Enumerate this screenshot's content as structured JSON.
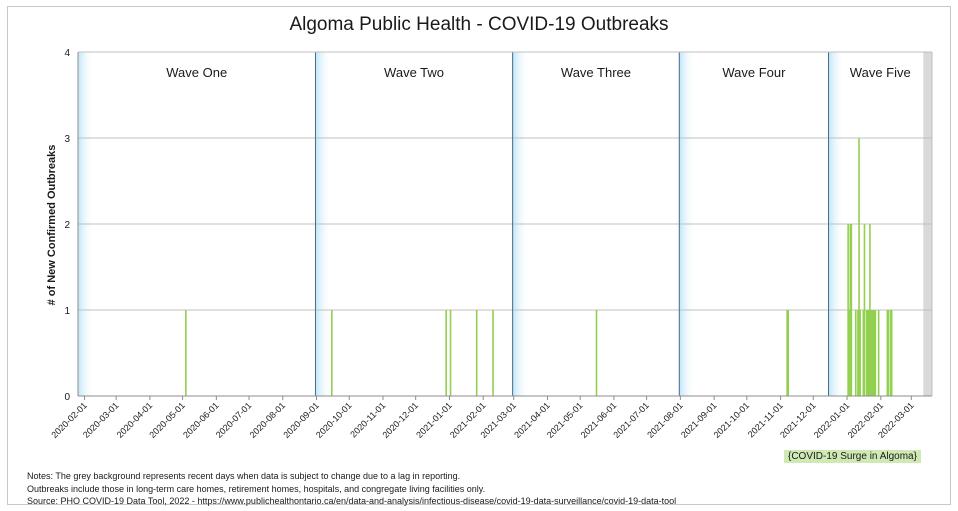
{
  "chart_data": {
    "type": "bar",
    "title": "Algoma Public Health - COVID-19 Outbreaks",
    "ylabel": "# of New Confirmed Outbreaks",
    "xlabel": "",
    "ylim": [
      0,
      4
    ],
    "xlim": [
      "2020-01-26",
      "2022-03-20"
    ],
    "yticks": [
      0,
      1,
      2,
      3,
      4
    ],
    "grid": true,
    "xticks": [
      "2020-02-01",
      "2020-03-01",
      "2020-04-01",
      "2020-05-01",
      "2020-06-01",
      "2020-07-01",
      "2020-08-01",
      "2020-09-01",
      "2020-10-01",
      "2020-11-01",
      "2020-12-01",
      "2021-01-01",
      "2021-02-01",
      "2021-03-01",
      "2021-04-01",
      "2021-05-01",
      "2021-06-01",
      "2021-07-01",
      "2021-08-01",
      "2021-09-01",
      "2021-10-01",
      "2021-11-01",
      "2021-12-01",
      "2022-01-01",
      "2022-02-01",
      "2022-03-01"
    ],
    "bar_color": "#92d050",
    "waves": [
      {
        "label": "Wave One",
        "start": "2020-01-26",
        "end": "2020-08-31"
      },
      {
        "label": "Wave Two",
        "start": "2020-08-31",
        "end": "2021-02-28"
      },
      {
        "label": "Wave Three",
        "start": "2021-02-28",
        "end": "2021-07-31"
      },
      {
        "label": "Wave Four",
        "start": "2021-07-31",
        "end": "2021-12-15"
      },
      {
        "label": "Wave Five",
        "start": "2021-12-15",
        "end": "2022-03-20"
      }
    ],
    "grey_region": {
      "start": "2022-03-12",
      "end": "2022-03-20"
    },
    "points": [
      {
        "date": "2020-05-04",
        "value": 1
      },
      {
        "date": "2020-09-15",
        "value": 1
      },
      {
        "date": "2020-12-29",
        "value": 1
      },
      {
        "date": "2021-01-02",
        "value": 1
      },
      {
        "date": "2021-01-26",
        "value": 1
      },
      {
        "date": "2021-02-10",
        "value": 1
      },
      {
        "date": "2021-05-16",
        "value": 1
      },
      {
        "date": "2021-11-07",
        "value": 1
      },
      {
        "date": "2021-11-08",
        "value": 1
      },
      {
        "date": "2022-01-02",
        "value": 2
      },
      {
        "date": "2022-01-03",
        "value": 1
      },
      {
        "date": "2022-01-04",
        "value": 2
      },
      {
        "date": "2022-01-05",
        "value": 2
      },
      {
        "date": "2022-01-09",
        "value": 1
      },
      {
        "date": "2022-01-11",
        "value": 1
      },
      {
        "date": "2022-01-12",
        "value": 3
      },
      {
        "date": "2022-01-13",
        "value": 1
      },
      {
        "date": "2022-01-16",
        "value": 1
      },
      {
        "date": "2022-01-17",
        "value": 2
      },
      {
        "date": "2022-01-19",
        "value": 1
      },
      {
        "date": "2022-01-20",
        "value": 1
      },
      {
        "date": "2022-01-21",
        "value": 1
      },
      {
        "date": "2022-01-22",
        "value": 2
      },
      {
        "date": "2022-01-23",
        "value": 1
      },
      {
        "date": "2022-01-24",
        "value": 1
      },
      {
        "date": "2022-01-25",
        "value": 1
      },
      {
        "date": "2022-01-26",
        "value": 1
      },
      {
        "date": "2022-01-27",
        "value": 1
      },
      {
        "date": "2022-01-30",
        "value": 1
      },
      {
        "date": "2022-02-07",
        "value": 1
      },
      {
        "date": "2022-02-08",
        "value": 1
      },
      {
        "date": "2022-02-10",
        "value": 1
      },
      {
        "date": "2022-02-11",
        "value": 1
      }
    ]
  },
  "surge_label": "{COVID-19 Surge in Algoma}",
  "notes": [
    "Notes: The grey background represents recent days when data is subject to change due to a lag in reporting.",
    "Outbreaks include those in long-term care homes, retirement homes, hospitals, and congregate living facilities only.",
    "Source: PHO COVID-19 Data Tool, 2022 - https://www.publichealthontario.ca/en/data-and-analysis/infectious-disease/covid-19-data-surveillance/covid-19-data-tool"
  ]
}
